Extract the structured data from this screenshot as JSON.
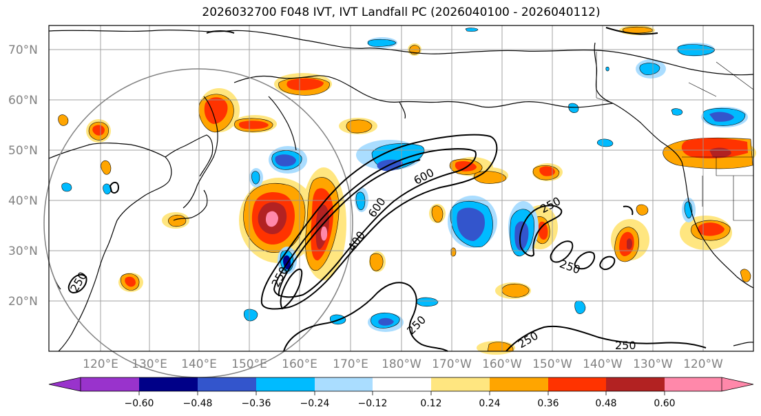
{
  "title": "2026032700 F048 IVT, IVT Landfall PC (2026040100 - 2026040112)",
  "lat_labels": [
    "70°N",
    "60°N",
    "50°N",
    "40°N",
    "30°N",
    "20°N"
  ],
  "lon_labels": [
    "120°E",
    "130°E",
    "140°E",
    "150°E",
    "160°E",
    "170°E",
    "180°W",
    "170°W",
    "160°W",
    "150°W",
    "140°W",
    "130°W",
    "120°W"
  ],
  "colorbar": {
    "ticks": [
      "−0.60",
      "−0.48",
      "−0.36",
      "−0.24",
      "−0.12",
      "0.12",
      "0.24",
      "0.36",
      "0.48",
      "0.60"
    ],
    "colors": [
      "#9933cc",
      "#000088",
      "#3355cc",
      "#00bbff",
      "#aaddff",
      "#ffffff",
      "#ffe680",
      "#ffa500",
      "#ff3300",
      "#b22222",
      "#ff88aa"
    ]
  },
  "contour_labels": [
    "600",
    "600",
    "400",
    "250",
    "250",
    "250",
    "250",
    "250",
    "250",
    "250"
  ],
  "colors": {
    "blue_fill": "#00bbff",
    "orange_fill": "#ffa500",
    "red_fill": "#ff3300",
    "dark_red": "#b22222",
    "pink": "#ff88aa",
    "yellow": "#ffe680",
    "mid_blue": "#3355cc",
    "grid": "#999999"
  }
}
